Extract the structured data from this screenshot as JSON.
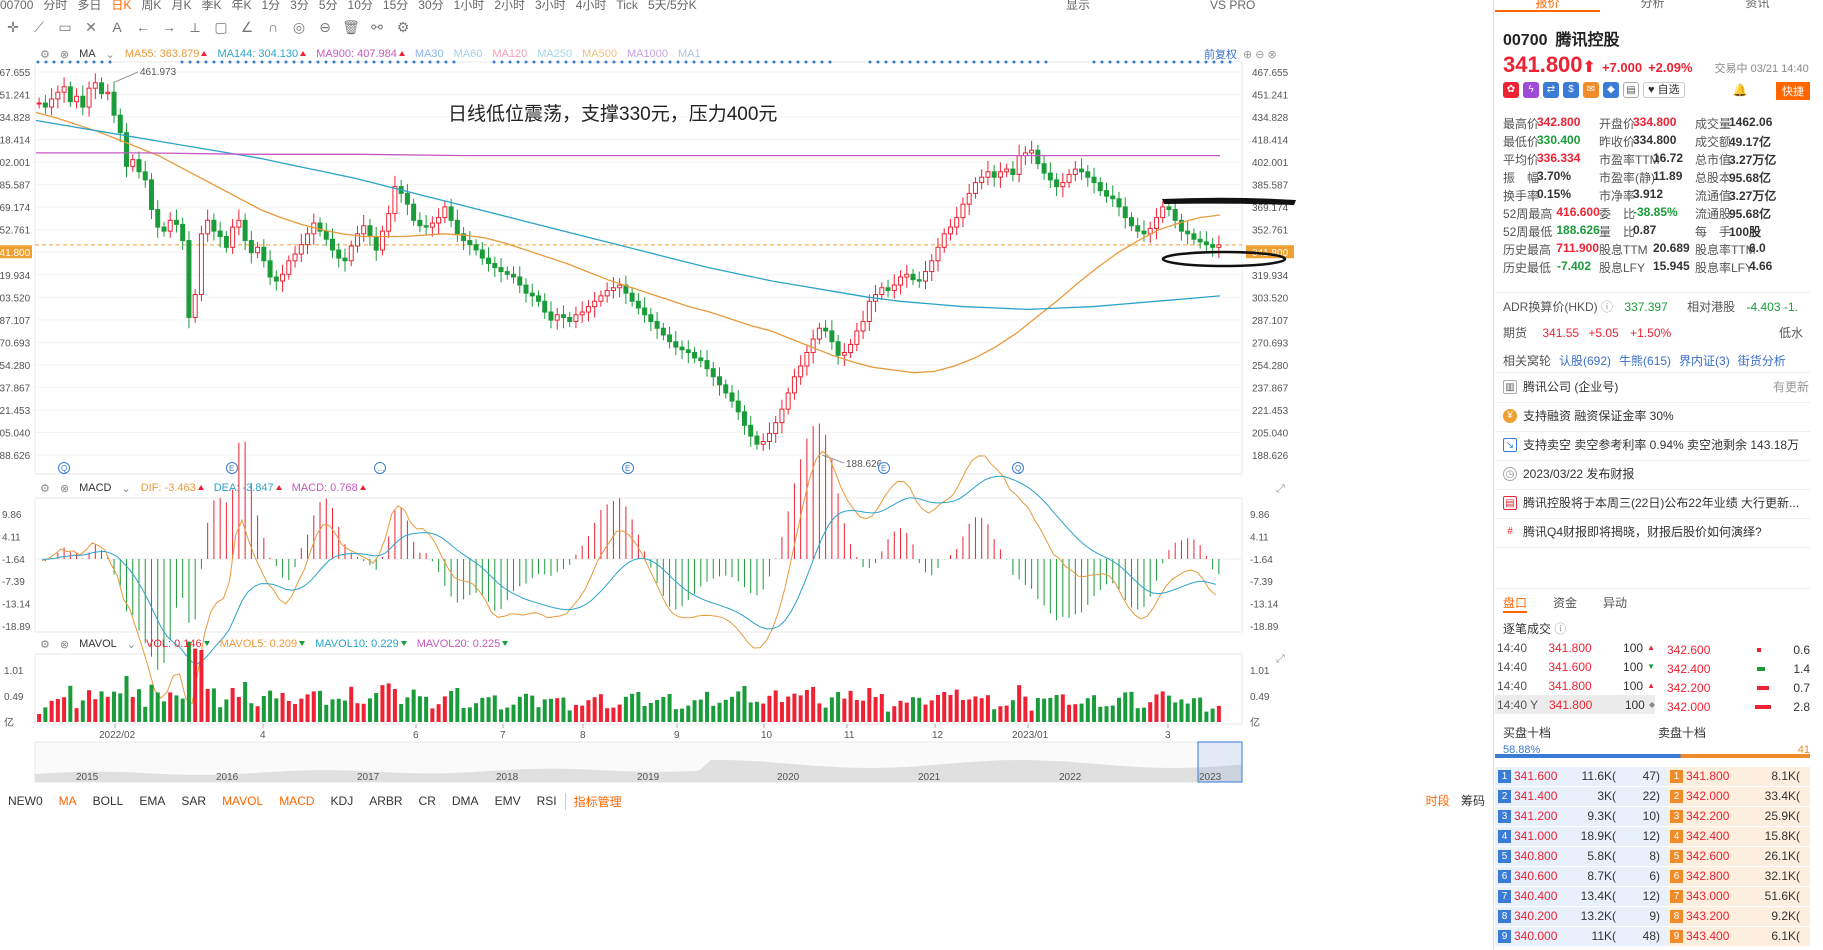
{
  "toolbar": {
    "items": [
      "00700",
      "分时",
      "多日",
      "日K",
      "周K",
      "月K",
      "季K",
      "年K",
      "1分",
      "3分",
      "5分",
      "10分",
      "15分",
      "30分",
      "1小时",
      "2小时",
      "3小时",
      "4小时",
      "Tick",
      "5天/5分K"
    ],
    "active": "日K",
    "right_items": [
      "显示",
      "VS PRO"
    ]
  },
  "main_indicator": {
    "name": "MA",
    "items": [
      {
        "label": "MA55:",
        "value": "363.879",
        "color": "#e89a3c",
        "dir": "up"
      },
      {
        "label": "MA144:",
        "value": "304.130",
        "color": "#2aa3c9",
        "dir": "up"
      },
      {
        "label": "MA900:",
        "value": "407.984",
        "color": "#c55ac0",
        "dir": "up"
      },
      {
        "label": "MA30",
        "value": "",
        "color": "#8ab4e8",
        "dir": ""
      },
      {
        "label": "MA60",
        "value": "",
        "color": "#9fd0e8",
        "dir": ""
      },
      {
        "label": "MA120",
        "value": "",
        "color": "#f0a0b0",
        "dir": ""
      },
      {
        "label": "MA250",
        "value": "",
        "color": "#a0d8e8",
        "dir": ""
      },
      {
        "label": "MA500",
        "value": "",
        "color": "#f0c080",
        "dir": ""
      },
      {
        "label": "MA1000",
        "value": "",
        "color": "#c8a0e0",
        "dir": ""
      },
      {
        "label": "MA1",
        "value": "",
        "color": "#b0c0e0",
        "dir": ""
      }
    ],
    "adjust_label": "前复权"
  },
  "annotation_text": "日线低位震荡，支撑330元，压力400元",
  "main_chart": {
    "y_ticks": [
      "467.655",
      "451.241",
      "434.828",
      "418.414",
      "402.001",
      "385.587",
      "369.174",
      "352.761",
      "341.800",
      "319.934",
      "303.520",
      "287.107",
      "270.693",
      "254.280",
      "237.867",
      "221.453",
      "205.040",
      "188.626"
    ],
    "y_ticks_left": [
      "467.655",
      "451.241",
      "434.828",
      "418.414",
      "402.001",
      "385.587",
      "369.174",
      "352.761",
      "341.800",
      "319.934",
      "303.520",
      "287.107",
      "270.693",
      "254.280",
      "237.867",
      "221.453",
      "205.040",
      "188.626"
    ],
    "current_price_label": "341.800",
    "high_label": "461.973",
    "low_label": "188.626",
    "ylim": [
      186,
      470
    ]
  },
  "macd": {
    "name": "MACD",
    "items": [
      {
        "label": "DIF:",
        "value": "-3.463",
        "color": "#e89a3c",
        "dir": "up"
      },
      {
        "label": "DEA:",
        "value": "-3.847",
        "color": "#2aa3c9",
        "dir": "up"
      },
      {
        "label": "MACD:",
        "value": "0.768",
        "color": "#c55ac0",
        "dir": "up"
      }
    ],
    "y_ticks": [
      "9.86",
      "4.11",
      "-1.64",
      "-7.39",
      "-13.14",
      "-18.89"
    ]
  },
  "mavol": {
    "name": "MAVOL",
    "items": [
      {
        "label": "VOL:",
        "value": "0.146",
        "color": "#e23",
        "dir": "down"
      },
      {
        "label": "MAVOL5:",
        "value": "0.209",
        "color": "#e89a3c",
        "dir": "down"
      },
      {
        "label": "MAVOL10:",
        "value": "0.229",
        "color": "#2aa3c9",
        "dir": "down"
      },
      {
        "label": "MAVOL20:",
        "value": "0.225",
        "color": "#c55ac0",
        "dir": "down"
      }
    ],
    "y_ticks": [
      "1.01",
      "0.49",
      "亿"
    ]
  },
  "x_axis_months": [
    "2022/02",
    "4",
    "6",
    "7",
    "8",
    "9",
    "10",
    "11",
    "12",
    "2023/01",
    "3"
  ],
  "overview_years": [
    "2015",
    "2016",
    "2017",
    "2018",
    "2019",
    "2020",
    "2021",
    "2022",
    "2023"
  ],
  "bottom_tabs": [
    "NEW0",
    "MA",
    "BOLL",
    "EMA",
    "SAR",
    "MAVOL",
    "MACD",
    "KDJ",
    "ARBR",
    "CR",
    "DMA",
    "EMV",
    "RSI"
  ],
  "bottom_tabs_active": [
    "MA",
    "MAVOL",
    "MACD"
  ],
  "bottom_manage": "指标管理",
  "bottom_right": {
    "active": "时段",
    "other": "筹码"
  },
  "right_panel": {
    "tabs": [
      "报价",
      "分析",
      "资讯"
    ],
    "code": "00700",
    "name": "腾讯控股",
    "price": "341.800",
    "change": "+7.000",
    "change_pct": "+2.09%",
    "trade_status": "交易中 03/21 14:40",
    "fav_label": "自选",
    "quick_label": "快捷",
    "stats": [
      [
        [
          "最高价",
          "342.800",
          "red"
        ],
        [
          "开盘价",
          "334.800",
          "red"
        ],
        [
          "成交量",
          "1462.06",
          ""
        ]
      ],
      [
        [
          "最低价",
          "330.400",
          "green"
        ],
        [
          "昨收价",
          "334.800",
          ""
        ],
        [
          "成交额",
          "49.17亿",
          ""
        ]
      ],
      [
        [
          "平均价",
          "336.334",
          "red"
        ],
        [
          "市盈率TTM",
          "16.72",
          ""
        ],
        [
          "总市值",
          "3.27万亿",
          ""
        ]
      ],
      [
        [
          "振　幅",
          "3.70%",
          ""
        ],
        [
          "市盈率(静)",
          "11.89",
          ""
        ],
        [
          "总股本",
          "95.68亿",
          ""
        ]
      ],
      [
        [
          "换手率",
          "0.15%",
          ""
        ],
        [
          "市净率",
          "3.912",
          ""
        ],
        [
          "流通值",
          "3.27万亿",
          ""
        ]
      ],
      [
        [
          "52周最高",
          "416.600",
          "red"
        ],
        [
          "委　比",
          "-38.85%",
          "green"
        ],
        [
          "流通股",
          "95.68亿",
          ""
        ]
      ],
      [
        [
          "52周最低",
          "188.626",
          "green"
        ],
        [
          "量　比",
          "0.87",
          ""
        ],
        [
          "每　手",
          "100股",
          ""
        ]
      ],
      [
        [
          "历史最高",
          "711.900",
          "red"
        ],
        [
          "股息TTM",
          "20.689",
          ""
        ],
        [
          "股息率TTM",
          "6.0",
          ""
        ]
      ],
      [
        [
          "历史最低",
          "-7.402",
          "green"
        ],
        [
          "股息LFY",
          "15.945",
          ""
        ],
        [
          "股息率LFY",
          "4.66",
          ""
        ]
      ]
    ],
    "adr_label": "ADR换算价(HKD)",
    "adr_value": "337.397",
    "adr_rel_label": "相对港股",
    "adr_rel_value": "-4.403",
    "adr_rel_pct": "-1.",
    "futures_label": "期货",
    "futures_price": "341.55",
    "futures_chg": "+5.05",
    "futures_pct": "+1.50%",
    "futures_right": "低水",
    "warrants_label": "相关窝轮",
    "warrants": [
      "认股(692)",
      "牛熊(615)",
      "界内证(3)",
      "街货分析"
    ],
    "news": [
      {
        "icon": "building-icon",
        "text": "腾讯公司 (企业号)",
        "right": "有更新"
      },
      {
        "icon": "coin-icon",
        "text": "支持融资 融资保证金率 30%",
        "right": ""
      },
      {
        "icon": "chart-icon",
        "text": "支持卖空 卖空参考利率 0.94% 卖空池剩余 143.18万",
        "right": ""
      },
      {
        "icon": "clock-icon",
        "text": "2023/03/22 发布财报",
        "right": ""
      },
      {
        "icon": "doc-icon",
        "text": "腾讯控股将于本周三(22日)公布22年业绩 大行更新...",
        "right": ""
      },
      {
        "icon": "hash-icon",
        "text": "腾讯Q4财报即将揭晓，财报后股价如何演绎?",
        "right": ""
      }
    ],
    "sub_tabs": [
      "盘口",
      "资金",
      "异动"
    ],
    "ticks_title": "逐笔成交",
    "ticks": [
      {
        "t": "14:40",
        "p": "341.800",
        "v": "100",
        "d": "up"
      },
      {
        "t": "14:40",
        "p": "341.600",
        "v": "100",
        "d": "down"
      },
      {
        "t": "14:40",
        "p": "341.800",
        "v": "100",
        "d": "up"
      },
      {
        "t": "14:40 Y",
        "p": "341.800",
        "v": "100",
        "d": "neutral"
      }
    ],
    "mini_ob": [
      {
        "p": "342.600",
        "v": "0.6"
      },
      {
        "p": "342.400",
        "v": "1.4"
      },
      {
        "p": "342.200",
        "v": "0.7"
      },
      {
        "p": "342.000",
        "v": "2.8"
      }
    ],
    "bid_title": "买盘十档",
    "ask_title": "卖盘十档",
    "bid_ratio": "58.88%",
    "ask_ratio": "41",
    "bid_ratio_value": 0.5888,
    "orderbook": [
      {
        "bp": "341.600",
        "bv": "11.6K(",
        "bc": "47)",
        "ap": "341.800",
        "av": "8.1K("
      },
      {
        "bp": "341.400",
        "bv": "3K(",
        "bc": "22)",
        "ap": "342.000",
        "av": "33.4K("
      },
      {
        "bp": "341.200",
        "bv": "9.3K(",
        "bc": "10)",
        "ap": "342.200",
        "av": "25.9K("
      },
      {
        "bp": "341.000",
        "bv": "18.9K(",
        "bc": "12)",
        "ap": "342.400",
        "av": "15.8K("
      },
      {
        "bp": "340.800",
        "bv": "5.8K(",
        "bc": "8)",
        "ap": "342.600",
        "av": "26.1K("
      },
      {
        "bp": "340.600",
        "bv": "8.7K(",
        "bc": "6)",
        "ap": "342.800",
        "av": "32.1K("
      },
      {
        "bp": "340.400",
        "bv": "13.4K(",
        "bc": "12)",
        "ap": "343.000",
        "av": "51.6K("
      },
      {
        "bp": "340.200",
        "bv": "13.2K(",
        "bc": "9)",
        "ap": "343.200",
        "av": "9.2K("
      },
      {
        "bp": "340.000",
        "bv": "11K(",
        "bc": "48)",
        "ap": "343.400",
        "av": "6.1K("
      }
    ]
  },
  "chart_data": {
    "type": "candlestick",
    "price_path": [
      447,
      444,
      450,
      455,
      459,
      448,
      452,
      444,
      458,
      462,
      454,
      455,
      438,
      425,
      400,
      405,
      396,
      390,
      368,
      355,
      352,
      360,
      357,
      345,
      288,
      305,
      350,
      360,
      352,
      348,
      340,
      355,
      360,
      345,
      336,
      340,
      330,
      318,
      315,
      320,
      330,
      335,
      342,
      350,
      358,
      352,
      346,
      338,
      332,
      330,
      341,
      350,
      356,
      348,
      338,
      352,
      365,
      385,
      380,
      372,
      360,
      356,
      355,
      358,
      362,
      370,
      360,
      350,
      345,
      342,
      338,
      332,
      328,
      325,
      322,
      320,
      318,
      312,
      306,
      304,
      300,
      292,
      286,
      290,
      288,
      285,
      290,
      292,
      296,
      300,
      304,
      308,
      310,
      312,
      306,
      300,
      295,
      290,
      285,
      280,
      275,
      270,
      266,
      264,
      262,
      258,
      256,
      250,
      244,
      238,
      232,
      226,
      218,
      208,
      200,
      194,
      196,
      202,
      210,
      220,
      232,
      244,
      252,
      262,
      272,
      280,
      278,
      270,
      260,
      262,
      268,
      278,
      285,
      300,
      305,
      310,
      308,
      312,
      318,
      320,
      316,
      315,
      322,
      330,
      340,
      350,
      355,
      362,
      372,
      380,
      388,
      392,
      396,
      392,
      396,
      398,
      394,
      408,
      410,
      412,
      402,
      395,
      390,
      385,
      388,
      394,
      398,
      396,
      392,
      388,
      382,
      378,
      376,
      370,
      362,
      356,
      352,
      350,
      354,
      362,
      370,
      368,
      360,
      352,
      350,
      346,
      344,
      342,
      340,
      341.8
    ],
    "ma55": [
      440,
      436,
      431,
      426,
      420,
      414,
      408,
      400,
      392,
      384,
      376,
      368,
      362,
      357,
      353,
      350,
      348,
      348,
      348,
      349,
      350,
      349,
      347,
      343,
      338,
      333,
      328,
      322,
      316,
      311,
      306,
      301,
      296,
      292,
      287,
      282,
      278,
      272,
      266,
      260,
      255,
      251,
      249,
      247,
      248,
      252,
      258,
      266,
      276,
      288,
      300,
      313,
      325,
      336,
      345,
      353,
      358,
      362,
      364
    ],
    "ma144": [
      434,
      430,
      426,
      422,
      418,
      414,
      410,
      406,
      401,
      396,
      391,
      385,
      379,
      373,
      367,
      361,
      355,
      349,
      343,
      337,
      331,
      325,
      320,
      315,
      311,
      307,
      303,
      300,
      298,
      296,
      295,
      294,
      295,
      296,
      298,
      300,
      302,
      304
    ],
    "ma900": [
      410,
      410,
      409,
      409,
      408,
      408,
      408,
      408,
      408,
      408,
      408,
      408
    ],
    "annotations": [
      "日线低位震荡，支撑330元，压力400元"
    ]
  }
}
